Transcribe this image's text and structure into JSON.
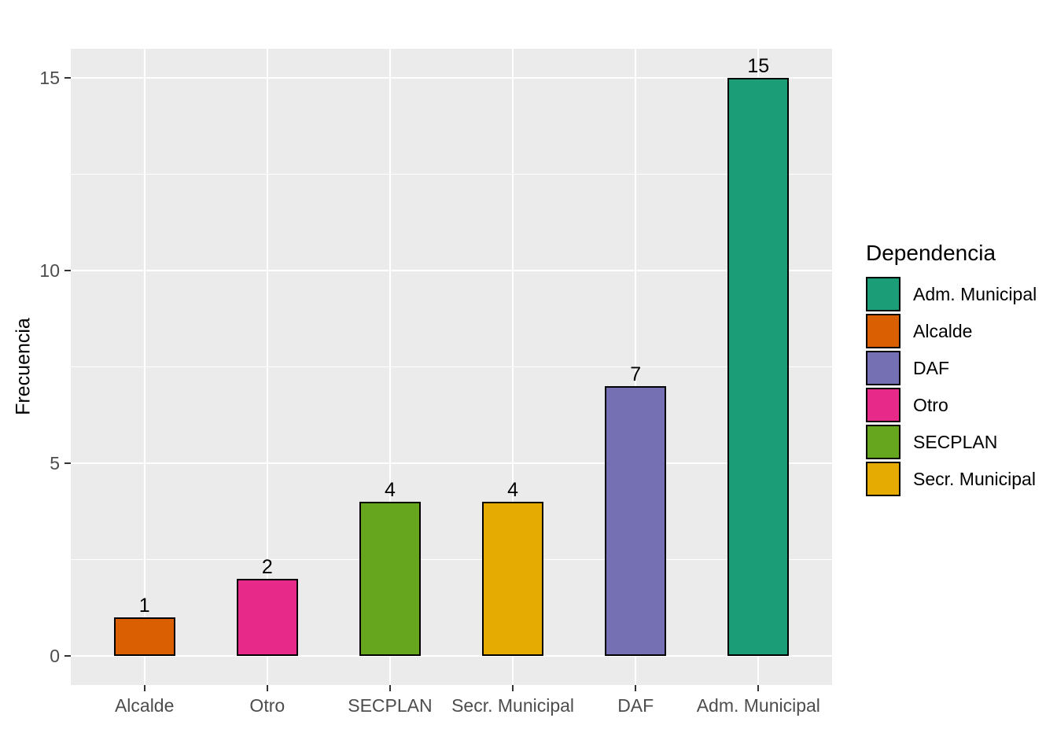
{
  "chart_data": {
    "type": "bar",
    "title": "",
    "xlabel": "",
    "ylabel": "Frecuencia",
    "categories": [
      "Alcalde",
      "Otro",
      "SECPLAN",
      "Secr. Municipal",
      "DAF",
      "Adm. Municipal"
    ],
    "values": [
      1,
      2,
      4,
      4,
      7,
      15
    ],
    "bar_value_labels": [
      "1",
      "2",
      "4",
      "4",
      "7",
      "15"
    ],
    "bar_colors": [
      "#D95F02",
      "#E7298A",
      "#66A61E",
      "#E6AB02",
      "#7570B3",
      "#1B9E77"
    ],
    "bar_border_color": "#000000",
    "y_ticks": [
      0,
      5,
      10,
      15
    ],
    "y_minor_ticks": [
      2.5,
      7.5,
      12.5
    ],
    "ylim": [
      -0.75,
      15.75
    ],
    "grid": "on",
    "panel_background": "#EBEBEB",
    "grid_color": "#FFFFFF",
    "axis_text_color": "#4D4D4D",
    "text_color": "#000000",
    "legend": {
      "title": "Dependencia",
      "position": "right",
      "entries": [
        {
          "label": "Adm. Municipal",
          "color": "#1B9E77"
        },
        {
          "label": "Alcalde",
          "color": "#D95F02"
        },
        {
          "label": "DAF",
          "color": "#7570B3"
        },
        {
          "label": "Otro",
          "color": "#E7298A"
        },
        {
          "label": "SECPLAN",
          "color": "#66A61E"
        },
        {
          "label": "Secr. Municipal",
          "color": "#E6AB02"
        }
      ]
    }
  }
}
